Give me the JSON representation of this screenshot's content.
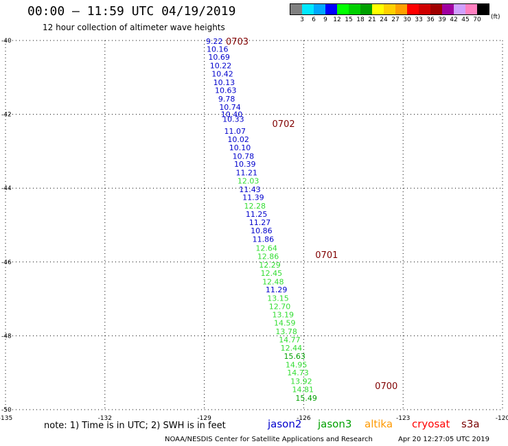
{
  "header": {
    "title": "00:00 – 11:59 UTC 04/19/2019",
    "subtitle": "12 hour collection of altimeter wave heights"
  },
  "colorbar": {
    "colors": [
      "#808080",
      "#00e8ff",
      "#00a8ff",
      "#0000ff",
      "#00ff00",
      "#00d000",
      "#00a000",
      "#ffff00",
      "#ffd000",
      "#ffa000",
      "#ff0000",
      "#d00000",
      "#a00000",
      "#a000a0",
      "#d0a0ff",
      "#ff80c0",
      "#000000"
    ],
    "labels": [
      "3",
      "6",
      "9",
      "12",
      "15",
      "18",
      "21",
      "24",
      "27",
      "30",
      "33",
      "36",
      "39",
      "42",
      "45",
      "70"
    ],
    "unit": "(ft)"
  },
  "footer": {
    "note": "note:  1) Time is in UTC;  2) SWH is in feet",
    "satellites": [
      {
        "name": "jason2",
        "color": "#0000cc"
      },
      {
        "name": "jason3",
        "color": "#00a000"
      },
      {
        "name": "altika",
        "color": "#ff9900"
      },
      {
        "name": "cryosat",
        "color": "#ff0000"
      },
      {
        "name": "s3a",
        "color": "#7a0000"
      }
    ],
    "credit": "NOAA/NESDIS Center for Satellite Applications and Research",
    "timestamp": "Apr 20 12:27:05 UTC 2019"
  },
  "chart_data": {
    "type": "scatter",
    "xlim": [
      -135,
      -120
    ],
    "ylim": [
      -50,
      -40
    ],
    "xticks": [
      -135,
      -132,
      -129,
      -126,
      -123,
      -120
    ],
    "yticks": [
      -40,
      -42,
      -44,
      -46,
      -48,
      -50
    ],
    "xtick_labels": [
      "-135",
      "-132",
      "-129",
      "-126",
      "-123",
      "-120"
    ],
    "ytick_labels": [
      "-40",
      "-42",
      "-44",
      "-46",
      "-48",
      "-50"
    ],
    "grid": true,
    "time_labels": [
      {
        "text": "0703",
        "lon": -128.35,
        "lat": -40.02
      },
      {
        "text": "0702",
        "lon": -126.95,
        "lat": -42.25
      },
      {
        "text": "0701",
        "lon": -125.65,
        "lat": -45.8
      },
      {
        "text": "0700",
        "lon": -123.85,
        "lat": -49.35
      }
    ],
    "points": [
      {
        "v": "9.22",
        "lon": -128.95,
        "lat": -40.02,
        "sat": "jason2"
      },
      {
        "v": "10.16",
        "lon": -128.93,
        "lat": -40.23,
        "sat": "jason2"
      },
      {
        "v": "10.69",
        "lon": -128.88,
        "lat": -40.45,
        "sat": "jason2"
      },
      {
        "v": "10.22",
        "lon": -128.83,
        "lat": -40.68,
        "sat": "jason2"
      },
      {
        "v": "10.42",
        "lon": -128.78,
        "lat": -40.9,
        "sat": "jason2"
      },
      {
        "v": "10.13",
        "lon": -128.73,
        "lat": -41.13,
        "sat": "jason2"
      },
      {
        "v": "10.63",
        "lon": -128.68,
        "lat": -41.35,
        "sat": "jason2"
      },
      {
        "v": "9.78",
        "lon": -128.58,
        "lat": -41.58,
        "sat": "jason2"
      },
      {
        "v": "10.74",
        "lon": -128.55,
        "lat": -41.8,
        "sat": "jason2"
      },
      {
        "v": "10.40",
        "lon": -128.5,
        "lat": -42.0,
        "sat": "jason2"
      },
      {
        "v": "10.33",
        "lon": -128.45,
        "lat": -42.13,
        "sat": "jason2"
      },
      {
        "v": "11.07",
        "lon": -128.4,
        "lat": -42.45,
        "sat": "jason2"
      },
      {
        "v": "10.02",
        "lon": -128.3,
        "lat": -42.68,
        "sat": "jason2"
      },
      {
        "v": "10.10",
        "lon": -128.25,
        "lat": -42.9,
        "sat": "jason2"
      },
      {
        "v": "10.78",
        "lon": -128.15,
        "lat": -43.13,
        "sat": "jason2"
      },
      {
        "v": "10.39",
        "lon": -128.1,
        "lat": -43.35,
        "sat": "jason2"
      },
      {
        "v": "11.21",
        "lon": -128.05,
        "lat": -43.58,
        "sat": "jason2"
      },
      {
        "v": "12.03",
        "lon": -128.0,
        "lat": -43.8,
        "sat": "jason3"
      },
      {
        "v": "11.43",
        "lon": -127.95,
        "lat": -44.03,
        "sat": "jason2"
      },
      {
        "v": "11.39",
        "lon": -127.85,
        "lat": -44.25,
        "sat": "jason2"
      },
      {
        "v": "12.28",
        "lon": -127.8,
        "lat": -44.48,
        "sat": "jason3"
      },
      {
        "v": "11.25",
        "lon": -127.75,
        "lat": -44.7,
        "sat": "jason2"
      },
      {
        "v": "11.27",
        "lon": -127.65,
        "lat": -44.93,
        "sat": "jason2"
      },
      {
        "v": "10.86",
        "lon": -127.6,
        "lat": -45.15,
        "sat": "jason2"
      },
      {
        "v": "11.86",
        "lon": -127.55,
        "lat": -45.38,
        "sat": "jason2"
      },
      {
        "v": "12.64",
        "lon": -127.45,
        "lat": -45.62,
        "sat": "jason3"
      },
      {
        "v": "12.86",
        "lon": -127.4,
        "lat": -45.85,
        "sat": "jason3"
      },
      {
        "v": "12.29",
        "lon": -127.35,
        "lat": -46.08,
        "sat": "jason3"
      },
      {
        "v": "12.45",
        "lon": -127.3,
        "lat": -46.3,
        "sat": "jason3"
      },
      {
        "v": "12.48",
        "lon": -127.25,
        "lat": -46.53,
        "sat": "jason3"
      },
      {
        "v": "11.29",
        "lon": -127.15,
        "lat": -46.75,
        "sat": "jason2"
      },
      {
        "v": "13.15",
        "lon": -127.1,
        "lat": -46.98,
        "sat": "jason3"
      },
      {
        "v": "12.70",
        "lon": -127.05,
        "lat": -47.2,
        "sat": "jason3"
      },
      {
        "v": "13.19",
        "lon": -126.95,
        "lat": -47.43,
        "sat": "jason3"
      },
      {
        "v": "14.59",
        "lon": -126.9,
        "lat": -47.65,
        "sat": "jason3"
      },
      {
        "v": "13.78",
        "lon": -126.85,
        "lat": -47.88,
        "sat": "jason3"
      },
      {
        "v": "14.77",
        "lon": -126.75,
        "lat": -48.1,
        "sat": "jason3"
      },
      {
        "v": "12.44",
        "lon": -126.7,
        "lat": -48.33,
        "sat": "jason3"
      },
      {
        "v": "15.63",
        "lon": -126.6,
        "lat": -48.55,
        "sat": "jason3b"
      },
      {
        "v": "14.95",
        "lon": -126.55,
        "lat": -48.78,
        "sat": "jason3"
      },
      {
        "v": "14.73",
        "lon": -126.5,
        "lat": -49.0,
        "sat": "jason3"
      },
      {
        "v": "13.92",
        "lon": -126.4,
        "lat": -49.23,
        "sat": "jason3"
      },
      {
        "v": "14.81",
        "lon": -126.35,
        "lat": -49.45,
        "sat": "jason3"
      },
      {
        "v": "15.49",
        "lon": -126.25,
        "lat": -49.68,
        "sat": "jason3b"
      }
    ]
  }
}
